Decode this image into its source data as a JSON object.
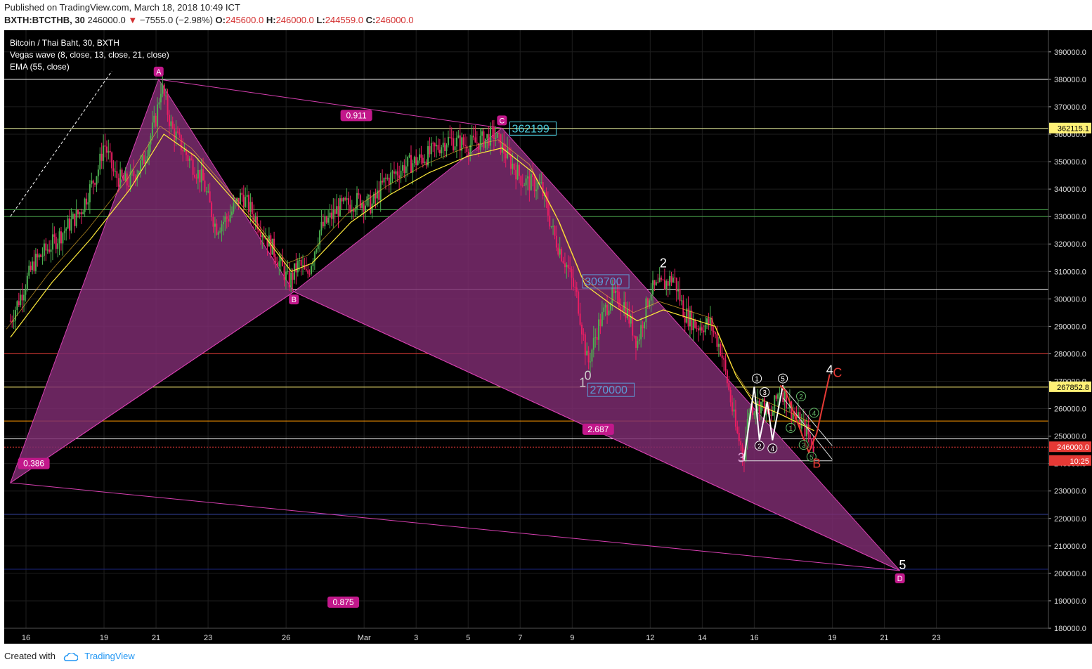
{
  "header": {
    "published": "Published on TradingView.com, March 18, 2018 10:49 ICT",
    "symbol": "BXTH:BTCTHB, 30",
    "last": "246000.0",
    "down_arrow": "▼",
    "change": "−7555.0 (−2.98%)",
    "o_label": "O:",
    "o_value": "245600.0",
    "h_label": "H:",
    "h_value": "246000.0",
    "l_label": "L:",
    "l_value": "244559.0",
    "c_label": "C:",
    "c_value": "246000.0"
  },
  "legend": {
    "title": "Bitcoin / Thai Baht, 30, BXTH",
    "indicator1": "Vegas wave (8, close, 13, close, 21, close)",
    "indicator2": "EMA (55, close)"
  },
  "footer": {
    "created_with": "Created with",
    "brand": "TradingView"
  },
  "colors": {
    "background": "#000000",
    "pattern_fill": "#7b2c6e",
    "pattern_edge": "#d63fb0",
    "candle_up": "#4caf50",
    "candle_down": "#e91e63",
    "ema": "#ffeb3b",
    "label_bg": "#c2188b"
  },
  "chart_data": {
    "type": "candlestick",
    "y_axis": {
      "range": [
        180000,
        392000
      ],
      "ticks": [
        "390000.0",
        "380000.0",
        "370000.0",
        "360000.0",
        "350000.0",
        "340000.0",
        "330000.0",
        "320000.0",
        "310000.0",
        "300000.0",
        "290000.0",
        "280000.0",
        "270000.0",
        "260000.0",
        "250000.0",
        "240000.0",
        "230000.0",
        "220000.0",
        "210000.0",
        "200000.0",
        "190000.0",
        "180000.0"
      ],
      "tick_values": [
        390000,
        380000,
        370000,
        360000,
        350000,
        340000,
        330000,
        320000,
        310000,
        300000,
        290000,
        280000,
        270000,
        260000,
        250000,
        240000,
        230000,
        220000,
        210000,
        200000,
        190000,
        180000
      ]
    },
    "x_axis": {
      "range": [
        0,
        37.5
      ],
      "ticks": [
        {
          "v": 0,
          "label": "16"
        },
        {
          "v": 3,
          "label": "19"
        },
        {
          "v": 5,
          "label": "21"
        },
        {
          "v": 7,
          "label": "23"
        },
        {
          "v": 10,
          "label": "26"
        },
        {
          "v": 13,
          "label": "Mar"
        },
        {
          "v": 15,
          "label": "3"
        },
        {
          "v": 17,
          "label": "5"
        },
        {
          "v": 19,
          "label": "7"
        },
        {
          "v": 21,
          "label": "9"
        },
        {
          "v": 24,
          "label": "12"
        },
        {
          "v": 26,
          "label": "14"
        },
        {
          "v": 28,
          "label": "16"
        },
        {
          "v": 31,
          "label": "19"
        },
        {
          "v": 33,
          "label": "21"
        },
        {
          "v": 35,
          "label": "23"
        }
      ]
    },
    "price_path": [
      [
        -0.6,
        292000
      ],
      [
        0.3,
        313000
      ],
      [
        1.2,
        322000
      ],
      [
        2.1,
        332000
      ],
      [
        2.8,
        348000
      ],
      [
        3.0,
        357000
      ],
      [
        3.4,
        345000
      ],
      [
        3.9,
        342000
      ],
      [
        4.5,
        350000
      ],
      [
        5.0,
        366000
      ],
      [
        5.2,
        378000
      ],
      [
        5.6,
        362000
      ],
      [
        6.2,
        352000
      ],
      [
        6.8,
        343000
      ],
      [
        7.3,
        326000
      ],
      [
        7.8,
        330000
      ],
      [
        8.3,
        338000
      ],
      [
        8.9,
        328000
      ],
      [
        9.5,
        318000
      ],
      [
        10.1,
        306000
      ],
      [
        10.5,
        313000
      ],
      [
        10.8,
        308000
      ],
      [
        11.3,
        325000
      ],
      [
        12.0,
        333000
      ],
      [
        12.8,
        336000
      ],
      [
        13.3,
        334000
      ],
      [
        13.8,
        343000
      ],
      [
        14.5,
        348000
      ],
      [
        15.4,
        352000
      ],
      [
        16.2,
        358000
      ],
      [
        17.0,
        356000
      ],
      [
        17.6,
        358000
      ],
      [
        18.0,
        360000
      ],
      [
        18.5,
        352000
      ],
      [
        19.1,
        343000
      ],
      [
        19.8,
        341000
      ],
      [
        20.3,
        323000
      ],
      [
        20.8,
        312000
      ],
      [
        21.2,
        300000
      ],
      [
        21.6,
        276000
      ],
      [
        22.0,
        290000
      ],
      [
        22.5,
        301000
      ],
      [
        23.0,
        298000
      ],
      [
        23.5,
        284000
      ],
      [
        24.0,
        303000
      ],
      [
        24.5,
        305000
      ],
      [
        24.9,
        308000
      ],
      [
        25.3,
        295000
      ],
      [
        25.8,
        290000
      ],
      [
        26.3,
        291000
      ],
      [
        26.7,
        282000
      ],
      [
        27.0,
        268000
      ],
      [
        27.3,
        252000
      ],
      [
        27.6,
        243000
      ],
      [
        27.8,
        260000
      ],
      [
        28.3,
        262000
      ],
      [
        28.6,
        256000
      ],
      [
        29.0,
        268000
      ],
      [
        29.5,
        258000
      ],
      [
        30.0,
        252000
      ],
      [
        30.3,
        246000
      ]
    ],
    "ema55": [
      [
        -0.6,
        286000
      ],
      [
        1.0,
        306000
      ],
      [
        2.5,
        322000
      ],
      [
        4.0,
        340000
      ],
      [
        5.3,
        360000
      ],
      [
        6.5,
        352000
      ],
      [
        7.8,
        338000
      ],
      [
        9.0,
        325000
      ],
      [
        10.2,
        310000
      ],
      [
        11.0,
        313000
      ],
      [
        12.5,
        328000
      ],
      [
        14.0,
        338000
      ],
      [
        15.5,
        346000
      ],
      [
        17.0,
        352000
      ],
      [
        18.3,
        355000
      ],
      [
        19.5,
        346000
      ],
      [
        20.5,
        328000
      ],
      [
        21.5,
        305000
      ],
      [
        22.5,
        298000
      ],
      [
        23.5,
        292000
      ],
      [
        24.5,
        296000
      ],
      [
        25.5,
        293000
      ],
      [
        26.5,
        290000
      ],
      [
        27.3,
        272000
      ],
      [
        28.0,
        262000
      ],
      [
        29.0,
        258000
      ],
      [
        30.3,
        252000
      ]
    ],
    "harmonic_pattern": {
      "points": [
        {
          "label": "A",
          "x": 5.1,
          "y": 380000
        },
        {
          "label": "B",
          "x": 10.3,
          "y": 302600
        },
        {
          "label": "C",
          "x": 18.3,
          "y": 362199
        },
        {
          "label": "D",
          "x": 33.6,
          "y": 201000
        }
      ],
      "x_point": {
        "x": -0.6,
        "y": 233000
      },
      "ratios": [
        {
          "text": "0.911",
          "x": 12.7,
          "y": 366800
        },
        {
          "text": "0.386",
          "x": 0.3,
          "y": 240000
        },
        {
          "text": "2.687",
          "x": 22.0,
          "y": 252500
        },
        {
          "text": "0.875",
          "x": 12.2,
          "y": 189500
        }
      ]
    },
    "horizontal_levels": [
      {
        "y": 380000,
        "color": "#ffffff"
      },
      {
        "y": 362115.1,
        "color": "#e6ee9c"
      },
      {
        "y": 332500,
        "color": "#4caf50"
      },
      {
        "y": 330000,
        "color": "#4caf50"
      },
      {
        "y": 303500,
        "color": "#ffffff"
      },
      {
        "y": 280000,
        "color": "#e53935"
      },
      {
        "y": 267852.8,
        "color": "#fff176"
      },
      {
        "y": 255500,
        "color": "#ff9800"
      },
      {
        "y": 249000,
        "color": "#ffffff"
      },
      {
        "y": 246000,
        "color": "#e53935",
        "dashed": true
      },
      {
        "y": 221500,
        "color": "#3949ab"
      },
      {
        "y": 201500,
        "color": "#1a237e"
      }
    ],
    "price_boxes": [
      {
        "text": "362199",
        "x": 18.6,
        "y": 362199,
        "color": "#4dd0e1"
      },
      {
        "text": "309700",
        "x": 21.4,
        "y": 306500,
        "color": "#5c9ad6"
      },
      {
        "text": "270000",
        "x": 21.6,
        "y": 267000,
        "color": "#5c9ad6"
      }
    ],
    "axis_tags": [
      {
        "text": "362115.1",
        "y": 362115.1,
        "bg": "#fff176",
        "fg": "#000000"
      },
      {
        "text": "267852.8",
        "y": 267852.8,
        "bg": "#fff176",
        "fg": "#000000"
      },
      {
        "text": "246000.0",
        "y": 246000,
        "bg": "#e53935",
        "fg": "#ffffff"
      },
      {
        "text": "10:25",
        "y": 241000,
        "bg": "#e53935",
        "fg": "#ffffff"
      }
    ],
    "wave_labels": [
      {
        "text": "2",
        "x": 24.5,
        "y": 311500,
        "color": "#ffffff"
      },
      {
        "text": "1",
        "x": 21.4,
        "y": 268000,
        "color": "#cccccc"
      },
      {
        "text": "0",
        "x": 21.6,
        "y": 270500,
        "color": "#cccccc"
      },
      {
        "text": "3",
        "x": 27.5,
        "y": 240500,
        "color": "#e0a0d8"
      },
      {
        "text": "4",
        "x": 30.9,
        "y": 272500,
        "color": "#ffffff"
      },
      {
        "text": "C",
        "x": 31.2,
        "y": 271500,
        "color": "#e53935"
      },
      {
        "text": "B",
        "x": 30.4,
        "y": 238500,
        "color": "#e53935"
      },
      {
        "text": "5",
        "x": 33.7,
        "y": 201500,
        "color": "#ffffff"
      }
    ],
    "white_zigzag": [
      [
        27.6,
        241000
      ],
      [
        28.0,
        268000
      ],
      [
        28.2,
        248500
      ],
      [
        28.5,
        262500
      ],
      [
        28.7,
        248500
      ],
      [
        29.1,
        268500
      ]
    ],
    "circle_counts_white": [
      {
        "text": "1",
        "x": 28.1,
        "y": 271000
      },
      {
        "text": "2",
        "x": 28.2,
        "y": 246500
      },
      {
        "text": "3",
        "x": 28.4,
        "y": 266000
      },
      {
        "text": "4",
        "x": 28.7,
        "y": 245500
      },
      {
        "text": "5",
        "x": 29.1,
        "y": 271000
      }
    ],
    "circle_counts_green": [
      {
        "text": "1",
        "x": 29.4,
        "y": 253000
      },
      {
        "text": "2",
        "x": 29.8,
        "y": 264500
      },
      {
        "text": "3",
        "x": 29.9,
        "y": 246800
      },
      {
        "text": "4",
        "x": 30.3,
        "y": 258500
      },
      {
        "text": "5",
        "x": 30.2,
        "y": 242500
      }
    ],
    "red_projection": [
      [
        29.0,
        268500
      ],
      [
        29.2,
        266500
      ],
      [
        30.1,
        244000
      ],
      [
        30.4,
        251000
      ],
      [
        30.9,
        272500
      ]
    ],
    "channel_lines": [
      {
        "from": [
          29.1,
          268000
        ],
        "to": [
          31.0,
          246500
        ]
      },
      {
        "from": [
          29.1,
          264000
        ],
        "to": [
          31.0,
          241500
        ]
      }
    ],
    "base_line": {
      "from": [
        27.4,
        241000
      ],
      "to": [
        31.0,
        241000
      ]
    },
    "dashed_trend": {
      "from": [
        -0.6,
        330000
      ],
      "to": [
        3.3,
        383000
      ]
    },
    "grid": true
  }
}
